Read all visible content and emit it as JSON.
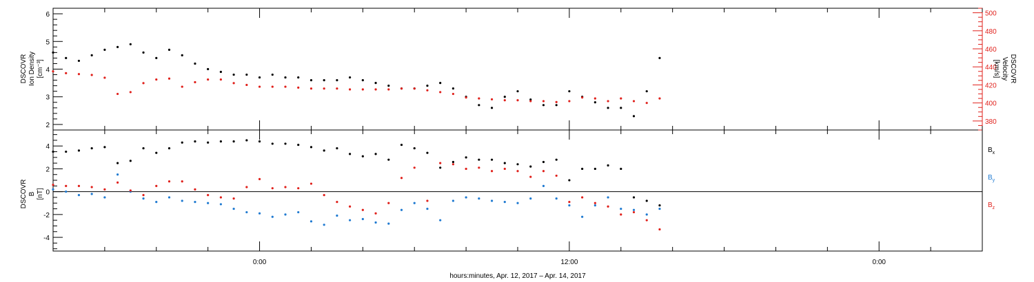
{
  "chart_data": [
    {
      "type": "scatter",
      "panel": "top",
      "ylabel_left": [
        "DSCOVR",
        "Ion Density",
        "[cm⁻³]"
      ],
      "ylabel_right": [
        "DSCOVR",
        "Velocity",
        "[km/s]"
      ],
      "left_axis": {
        "ylim": [
          1.8,
          6.2
        ],
        "ticks": [
          2,
          3,
          4,
          5,
          6
        ]
      },
      "right_axis": {
        "ylim": [
          370,
          505
        ],
        "ticks": [
          380,
          400,
          420,
          440,
          460,
          480,
          500
        ]
      },
      "series": [
        {
          "axis": "left",
          "color": "#000000",
          "x": [
            -8.0,
            -7.5,
            -7.0,
            -6.5,
            -6.0,
            -5.5,
            -5.0,
            -4.5,
            -4.0,
            -3.5,
            -3.0,
            -2.5,
            -2.0,
            -1.5,
            -1.0,
            -0.5,
            0.0,
            0.5,
            1.0,
            1.5,
            2.0,
            2.5,
            3.0,
            3.5,
            4.0,
            4.5,
            5.0,
            5.5,
            6.0,
            6.5,
            7.0,
            7.5,
            8.0,
            8.5,
            9.0,
            9.5,
            10.0,
            10.5,
            11.0,
            11.5,
            12.0,
            12.5,
            13.0,
            13.5,
            14.0,
            14.5,
            15.0,
            15.5
          ],
          "values": [
            4.6,
            4.4,
            4.3,
            4.5,
            4.7,
            4.8,
            4.9,
            4.6,
            4.4,
            4.7,
            4.5,
            4.2,
            4.0,
            3.9,
            3.8,
            3.8,
            3.7,
            3.8,
            3.7,
            3.7,
            3.6,
            3.6,
            3.6,
            3.7,
            3.6,
            3.5,
            3.4,
            3.3,
            3.3,
            3.4,
            3.5,
            3.3,
            3.0,
            2.7,
            2.6,
            3.0,
            3.2,
            2.9,
            2.7,
            2.7,
            3.2,
            3.0,
            2.8,
            2.6,
            2.6,
            2.3,
            3.2,
            4.4
          ]
        },
        {
          "axis": "right",
          "color": "#e0201b",
          "x": [
            -8.0,
            -7.5,
            -7.0,
            -6.5,
            -6.0,
            -5.5,
            -5.0,
            -4.5,
            -4.0,
            -3.5,
            -3.0,
            -2.5,
            -2.0,
            -1.5,
            -1.0,
            -0.5,
            0.0,
            0.5,
            1.0,
            1.5,
            2.0,
            2.5,
            3.0,
            3.5,
            4.0,
            4.5,
            5.0,
            5.5,
            6.0,
            6.5,
            7.0,
            7.5,
            8.0,
            8.5,
            9.0,
            9.5,
            10.0,
            10.5,
            11.0,
            11.5,
            12.0,
            12.5,
            13.0,
            13.5,
            14.0,
            14.5,
            15.0,
            15.5
          ],
          "values": [
            435,
            433,
            432,
            431,
            428,
            410,
            412,
            422,
            426,
            427,
            418,
            423,
            426,
            426,
            422,
            420,
            418,
            418,
            418,
            417,
            416,
            416,
            416,
            415,
            415,
            415,
            415,
            416,
            416,
            414,
            412,
            410,
            406,
            405,
            404,
            403,
            403,
            402,
            402,
            401,
            402,
            406,
            405,
            402,
            405,
            402,
            400,
            405
          ]
        }
      ]
    },
    {
      "type": "scatter",
      "panel": "bottom",
      "ylabel": [
        "DSCOVR",
        "B",
        "[nT]"
      ],
      "ylim": [
        -5.2,
        5.4
      ],
      "ticks": [
        -4,
        -2,
        0,
        2,
        4
      ],
      "zero_line": true,
      "xlabel": "hours:minutes, Apr. 12, 2017 – Apr. 14, 2017",
      "x_ticks": [
        {
          "x": 0,
          "label": "0:00"
        },
        {
          "x": 12,
          "label": "12:00"
        },
        {
          "x": 24,
          "label": "0:00"
        }
      ],
      "xlim": [
        -8.0,
        28.0
      ],
      "series": [
        {
          "name": "Bx",
          "color": "#000000",
          "x": [
            -8.0,
            -7.5,
            -7.0,
            -6.5,
            -6.0,
            -5.5,
            -5.0,
            -4.5,
            -4.0,
            -3.5,
            -3.0,
            -2.5,
            -2.0,
            -1.5,
            -1.0,
            -0.5,
            0.0,
            0.5,
            1.0,
            1.5,
            2.0,
            2.5,
            3.0,
            3.5,
            4.0,
            4.5,
            5.0,
            5.5,
            6.0,
            6.5,
            7.0,
            7.5,
            8.0,
            8.5,
            9.0,
            9.5,
            10.0,
            10.5,
            11.0,
            11.5,
            12.0,
            12.5,
            13.0,
            13.5,
            14.0,
            14.5,
            15.0,
            15.5
          ],
          "values": [
            3.5,
            3.5,
            3.6,
            3.8,
            3.9,
            2.5,
            2.7,
            3.8,
            3.4,
            3.8,
            4.3,
            4.4,
            4.3,
            4.4,
            4.4,
            4.5,
            4.4,
            4.2,
            4.2,
            4.1,
            3.9,
            3.6,
            3.8,
            3.3,
            3.1,
            3.3,
            2.8,
            4.1,
            3.8,
            3.4,
            2.1,
            2.6,
            3.0,
            2.8,
            2.8,
            2.5,
            2.4,
            2.2,
            2.6,
            2.8,
            1.0,
            2.0,
            2.0,
            2.3,
            2.0,
            -0.5,
            -0.8,
            -1.2
          ]
        },
        {
          "name": "By",
          "color": "#1f7ad1",
          "x": [
            -8.0,
            -7.5,
            -7.0,
            -6.5,
            -6.0,
            -5.5,
            -5.0,
            -4.5,
            -4.0,
            -3.5,
            -3.0,
            -2.5,
            -2.0,
            -1.5,
            -1.0,
            -0.5,
            0.0,
            0.5,
            1.0,
            1.5,
            2.0,
            2.5,
            3.0,
            3.5,
            4.0,
            4.5,
            5.0,
            5.5,
            6.0,
            6.5,
            7.0,
            7.5,
            8.0,
            8.5,
            9.0,
            9.5,
            10.0,
            10.5,
            11.0,
            11.5,
            12.0,
            12.5,
            13.0,
            13.5,
            14.0,
            14.5,
            15.0,
            15.5
          ],
          "values": [
            0.2,
            0.0,
            -0.3,
            -0.2,
            -0.5,
            1.5,
            0.0,
            -0.6,
            -0.9,
            -0.5,
            -0.8,
            -0.9,
            -1.0,
            -1.1,
            -1.5,
            -1.8,
            -1.9,
            -2.2,
            -2.0,
            -1.8,
            -2.6,
            -2.9,
            -2.1,
            -2.5,
            -2.4,
            -2.7,
            -2.8,
            -1.6,
            -1.0,
            -1.5,
            -2.5,
            -0.8,
            -0.5,
            -0.6,
            -0.8,
            -0.9,
            -1.0,
            -0.6,
            0.5,
            -0.6,
            -1.2,
            -2.2,
            -1.2,
            -0.5,
            -1.5,
            -1.6,
            -2.0,
            -1.5
          ]
        },
        {
          "name": "Bz",
          "color": "#e0201b",
          "x": [
            -8.0,
            -7.5,
            -7.0,
            -6.5,
            -6.0,
            -5.5,
            -5.0,
            -4.5,
            -4.0,
            -3.5,
            -3.0,
            -2.5,
            -2.0,
            -1.5,
            -1.0,
            -0.5,
            0.0,
            0.5,
            1.0,
            1.5,
            2.0,
            2.5,
            3.0,
            3.5,
            4.0,
            4.5,
            5.0,
            5.5,
            6.0,
            6.5,
            7.0,
            7.5,
            8.0,
            8.5,
            9.0,
            9.5,
            10.0,
            10.5,
            11.0,
            11.5,
            12.0,
            12.5,
            13.0,
            13.5,
            14.0,
            14.5,
            15.0,
            15.5
          ],
          "values": [
            0.6,
            0.5,
            0.5,
            0.4,
            0.2,
            0.8,
            0.1,
            -0.3,
            0.5,
            0.9,
            0.9,
            0.2,
            -0.3,
            -0.5,
            -0.6,
            0.4,
            1.1,
            0.3,
            0.4,
            0.3,
            0.7,
            -0.3,
            -0.9,
            -1.3,
            -1.6,
            -1.9,
            -1.0,
            1.2,
            2.1,
            -0.8,
            2.5,
            2.4,
            2.0,
            2.1,
            1.8,
            2.0,
            1.8,
            1.3,
            1.8,
            1.4,
            -0.9,
            -0.5,
            -1.0,
            -1.3,
            -2.0,
            -1.8,
            -2.5,
            -3.3
          ]
        }
      ],
      "legend": [
        {
          "label": "B",
          "sub": "x",
          "color": "#000000",
          "value_pos": 3.7
        },
        {
          "label": "B",
          "sub": "y",
          "color": "#1f7ad1",
          "value_pos": 1.3
        },
        {
          "label": "B",
          "sub": "z",
          "color": "#e0201b",
          "value_pos": -1.1
        }
      ]
    }
  ]
}
